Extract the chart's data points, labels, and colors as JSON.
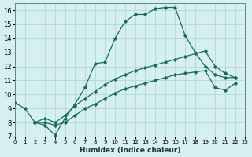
{
  "xlabel": "Humidex (Indice chaleur)",
  "ylabel": "",
  "bg_color": "#d6f0f0",
  "grid_color": "#b0d8d8",
  "line_color": "#1a6b5a",
  "xlim": [
    0,
    23
  ],
  "ylim": [
    7,
    16.5
  ],
  "xticks": [
    0,
    1,
    2,
    3,
    4,
    5,
    6,
    7,
    8,
    9,
    10,
    11,
    12,
    13,
    14,
    15,
    16,
    17,
    18,
    19,
    20,
    21,
    22,
    23
  ],
  "yticks": [
    7,
    8,
    9,
    10,
    11,
    12,
    13,
    14,
    15,
    16
  ],
  "lines": [
    {
      "x": [
        0,
        1,
        2,
        3,
        4,
        5,
        6,
        7,
        8,
        9,
        10,
        11,
        12,
        13,
        14,
        15,
        16,
        17,
        18,
        19,
        20,
        21,
        22
      ],
      "y": [
        9.4,
        9.0,
        8.0,
        7.8,
        7.1,
        8.3,
        9.3,
        10.5,
        12.2,
        12.3,
        14.0,
        15.2,
        15.7,
        15.7,
        16.1,
        16.2,
        16.2,
        14.2,
        13.0,
        12.0,
        11.4,
        11.2,
        11.2
      ]
    },
    {
      "x": [
        2,
        3,
        4,
        5,
        6,
        7,
        8,
        9,
        10,
        11,
        12,
        13,
        14,
        15,
        16,
        17,
        18,
        19,
        20,
        21,
        22
      ],
      "y": [
        8.0,
        8.3,
        8.0,
        8.5,
        9.2,
        9.7,
        10.2,
        10.7,
        11.1,
        11.4,
        11.7,
        11.9,
        12.1,
        12.3,
        12.5,
        12.7,
        12.9,
        13.1,
        12.0,
        11.5,
        11.2
      ]
    },
    {
      "x": [
        2,
        3,
        4,
        5,
        6,
        7,
        8,
        9,
        10,
        11,
        12,
        13,
        14,
        15,
        16,
        17,
        18,
        19,
        20,
        21,
        22
      ],
      "y": [
        8.0,
        8.0,
        7.8,
        8.0,
        8.5,
        9.0,
        9.3,
        9.7,
        10.1,
        10.4,
        10.6,
        10.8,
        11.0,
        11.2,
        11.4,
        11.5,
        11.6,
        11.7,
        10.5,
        10.3,
        10.8
      ]
    }
  ]
}
